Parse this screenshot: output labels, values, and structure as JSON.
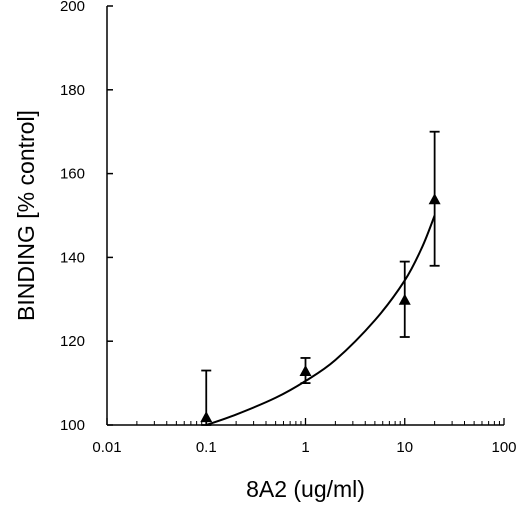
{
  "chart_data": {
    "type": "scatter",
    "title": "",
    "xlabel": "8A2 (ug/ml)",
    "ylabel": "BINDING [% control]",
    "x_scale": "log",
    "xlim": [
      0.01,
      100
    ],
    "ylim": [
      100,
      200
    ],
    "x_tick_labels": [
      "0.01",
      "0.1",
      "1",
      "10",
      "100"
    ],
    "y_tick_labels": [
      "100",
      "120",
      "140",
      "160",
      "180",
      "200"
    ],
    "grid": false,
    "legend": "none",
    "marker": "filled-triangle",
    "series": [
      {
        "x": [
          0.1,
          1,
          10,
          20
        ],
        "y": [
          102,
          113,
          130,
          154
        ],
        "error_upper": [
          113,
          116,
          139,
          170
        ],
        "error_lower": [
          100,
          110,
          121,
          138
        ]
      }
    ],
    "fit_curve": {
      "x": [
        0.1,
        0.2,
        0.5,
        1,
        2,
        5,
        10,
        15,
        20
      ],
      "y": [
        100,
        102.5,
        106.5,
        110.5,
        115.5,
        125,
        134.5,
        142.5,
        150
      ]
    },
    "colors": {
      "marks": "#000000",
      "background": "#ffffff"
    }
  }
}
